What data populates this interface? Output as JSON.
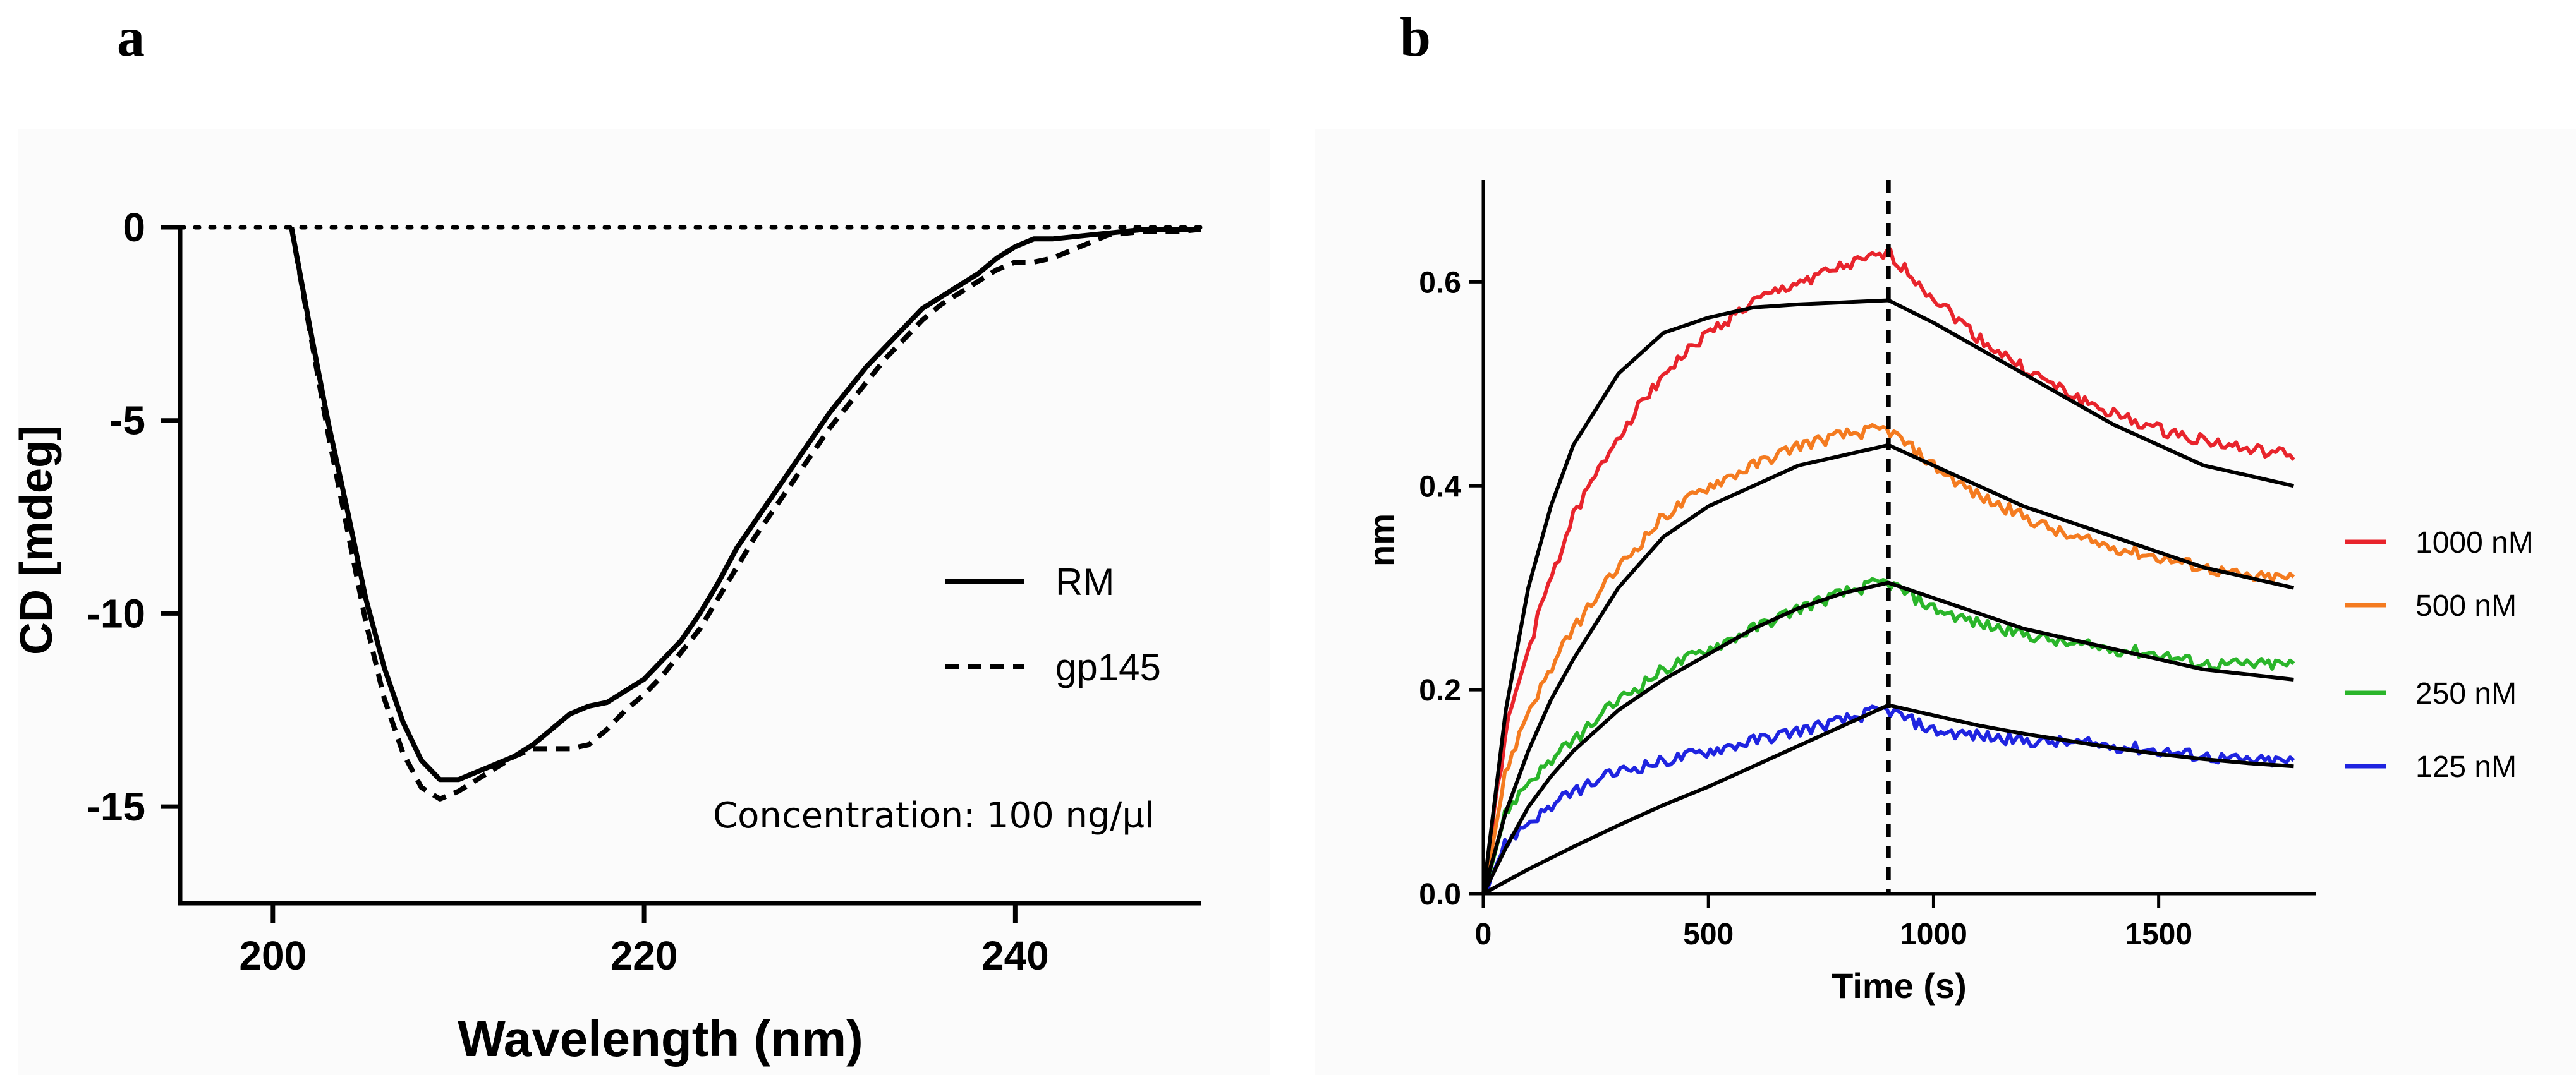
{
  "chart_data": [
    {
      "panel_label": "a",
      "type": "line",
      "xlabel": "Wavelength (nm)",
      "ylabel": "CD [mdeg]",
      "xlim": [
        195,
        250
      ],
      "ylim": [
        -17.5,
        0
      ],
      "xticks": [
        200,
        220,
        240
      ],
      "yticks": [
        0,
        -5,
        -10,
        -15
      ],
      "baseline": 0,
      "annotation": "Concentration: 100 ng/µl",
      "legend_position": "right",
      "series": [
        {
          "name": "RM",
          "style": "solid",
          "color": "#000000",
          "x": [
            201,
            202,
            203,
            204,
            205,
            206,
            207,
            208,
            209,
            210,
            211,
            212,
            213,
            214,
            215,
            216,
            217,
            218,
            219,
            220,
            221,
            222,
            223,
            224,
            225,
            226,
            227,
            228,
            229,
            230,
            231,
            232,
            233,
            234,
            235,
            236,
            237,
            238,
            239,
            240,
            241,
            242,
            243,
            244,
            245,
            246,
            247,
            248,
            249,
            250
          ],
          "y": [
            0,
            -2.6,
            -5.1,
            -7.3,
            -9.6,
            -11.4,
            -12.8,
            -13.8,
            -14.3,
            -14.3,
            -14.1,
            -13.9,
            -13.7,
            -13.4,
            -13.0,
            -12.6,
            -12.4,
            -12.3,
            -12.0,
            -11.7,
            -11.2,
            -10.7,
            -10.0,
            -9.2,
            -8.3,
            -7.6,
            -6.9,
            -6.2,
            -5.5,
            -4.8,
            -4.2,
            -3.6,
            -3.1,
            -2.6,
            -2.1,
            -1.8,
            -1.5,
            -1.2,
            -0.8,
            -0.5,
            -0.3,
            -0.3,
            -0.25,
            -0.2,
            -0.15,
            -0.1,
            -0.05,
            -0.05,
            -0.05,
            -0.05
          ]
        },
        {
          "name": "gp145",
          "style": "dashed",
          "color": "#000000",
          "x": [
            201,
            202,
            203,
            204,
            205,
            206,
            207,
            208,
            209,
            210,
            211,
            212,
            213,
            214,
            215,
            216,
            217,
            218,
            219,
            220,
            221,
            222,
            223,
            224,
            225,
            226,
            227,
            228,
            229,
            230,
            231,
            232,
            233,
            234,
            235,
            236,
            237,
            238,
            239,
            240,
            241,
            242,
            243,
            244,
            245,
            246,
            247,
            248,
            249,
            250
          ],
          "y": [
            0,
            -2.7,
            -5.4,
            -7.8,
            -10.2,
            -12.2,
            -13.6,
            -14.5,
            -14.8,
            -14.6,
            -14.3,
            -14.0,
            -13.7,
            -13.5,
            -13.5,
            -13.5,
            -13.4,
            -13.0,
            -12.5,
            -12.1,
            -11.6,
            -11.0,
            -10.4,
            -9.6,
            -8.8,
            -8.0,
            -7.3,
            -6.6,
            -5.9,
            -5.2,
            -4.6,
            -4.0,
            -3.4,
            -2.9,
            -2.4,
            -2.0,
            -1.7,
            -1.4,
            -1.1,
            -0.9,
            -0.9,
            -0.8,
            -0.6,
            -0.4,
            -0.2,
            -0.15,
            -0.1,
            -0.1,
            -0.1,
            -0.05
          ]
        }
      ]
    },
    {
      "panel_label": "b",
      "type": "line",
      "xlabel": "Time (s)",
      "ylabel": "nm",
      "xlim": [
        0,
        1850
      ],
      "ylim": [
        0,
        0.7
      ],
      "xticks": [
        0,
        500,
        1000,
        1500
      ],
      "yticks": [
        0.0,
        0.2,
        0.4,
        0.6
      ],
      "vline_x": 900,
      "legend_position": "right",
      "fit_color": "#000000",
      "series": [
        {
          "name": "1000 nM",
          "color": "#e8242c",
          "x": [
            0,
            50,
            100,
            150,
            200,
            300,
            400,
            500,
            600,
            700,
            800,
            880,
            900,
            1000,
            1100,
            1200,
            1300,
            1400,
            1500,
            1600,
            1700,
            1800
          ],
          "y": [
            0,
            0.16,
            0.24,
            0.31,
            0.37,
            0.45,
            0.51,
            0.55,
            0.58,
            0.6,
            0.615,
            0.625,
            0.628,
            0.585,
            0.545,
            0.515,
            0.49,
            0.47,
            0.455,
            0.445,
            0.435,
            0.43
          ],
          "fit_x": [
            0,
            50,
            100,
            150,
            200,
            300,
            400,
            500,
            600,
            700,
            800,
            900,
            1000,
            1100,
            1200,
            1300,
            1400,
            1500,
            1600,
            1700,
            1800
          ],
          "fit_y": [
            0,
            0.18,
            0.3,
            0.38,
            0.44,
            0.51,
            0.55,
            0.565,
            0.575,
            0.578,
            0.58,
            0.582,
            0.56,
            0.535,
            0.51,
            0.485,
            0.46,
            0.44,
            0.42,
            0.41,
            0.4
          ]
        },
        {
          "name": "500 nM",
          "color": "#f47b20",
          "x": [
            0,
            50,
            100,
            150,
            200,
            300,
            400,
            500,
            600,
            700,
            800,
            880,
            900,
            1000,
            1100,
            1200,
            1300,
            1400,
            1500,
            1600,
            1700,
            1800
          ],
          "y": [
            0,
            0.12,
            0.18,
            0.22,
            0.26,
            0.32,
            0.37,
            0.4,
            0.42,
            0.44,
            0.45,
            0.455,
            0.455,
            0.42,
            0.39,
            0.37,
            0.35,
            0.34,
            0.33,
            0.32,
            0.31,
            0.31
          ],
          "fit_x": [
            0,
            50,
            100,
            150,
            200,
            300,
            400,
            500,
            600,
            700,
            800,
            900,
            1000,
            1100,
            1200,
            1300,
            1400,
            1500,
            1600,
            1700,
            1800
          ],
          "fit_y": [
            0,
            0.08,
            0.14,
            0.19,
            0.23,
            0.3,
            0.35,
            0.38,
            0.4,
            0.42,
            0.43,
            0.44,
            0.42,
            0.4,
            0.38,
            0.365,
            0.35,
            0.335,
            0.32,
            0.31,
            0.3
          ]
        },
        {
          "name": "250 nM",
          "color": "#2ab52a",
          "x": [
            0,
            50,
            100,
            150,
            200,
            300,
            400,
            500,
            600,
            700,
            800,
            880,
            900,
            1000,
            1100,
            1200,
            1300,
            1400,
            1500,
            1600,
            1700,
            1800
          ],
          "y": [
            0,
            0.08,
            0.11,
            0.13,
            0.15,
            0.19,
            0.22,
            0.24,
            0.26,
            0.28,
            0.295,
            0.305,
            0.305,
            0.28,
            0.265,
            0.255,
            0.245,
            0.24,
            0.235,
            0.225,
            0.225,
            0.225
          ],
          "fit_x": [
            0,
            50,
            100,
            150,
            200,
            300,
            400,
            500,
            600,
            700,
            800,
            900,
            1000,
            1100,
            1200,
            1300,
            1400,
            1500,
            1600,
            1700,
            1800
          ],
          "fit_y": [
            0,
            0.045,
            0.085,
            0.115,
            0.14,
            0.18,
            0.21,
            0.235,
            0.26,
            0.28,
            0.295,
            0.305,
            0.29,
            0.275,
            0.26,
            0.25,
            0.24,
            0.23,
            0.22,
            0.215,
            0.21
          ]
        },
        {
          "name": "125 nM",
          "color": "#1f24e0",
          "x": [
            0,
            50,
            100,
            150,
            200,
            300,
            400,
            500,
            600,
            700,
            800,
            880,
            900,
            1000,
            1100,
            1200,
            1300,
            1400,
            1500,
            1600,
            1700,
            1800
          ],
          "y": [
            0,
            0.05,
            0.07,
            0.085,
            0.1,
            0.12,
            0.13,
            0.14,
            0.15,
            0.16,
            0.17,
            0.18,
            0.18,
            0.16,
            0.155,
            0.15,
            0.148,
            0.145,
            0.14,
            0.135,
            0.13,
            0.13
          ],
          "fit_x": [
            0,
            50,
            100,
            150,
            200,
            300,
            400,
            500,
            600,
            700,
            800,
            900,
            1000,
            1100,
            1200,
            1300,
            1400,
            1500,
            1600,
            1700,
            1800
          ],
          "fit_y": [
            0,
            0.012,
            0.024,
            0.035,
            0.046,
            0.067,
            0.087,
            0.105,
            0.125,
            0.145,
            0.165,
            0.185,
            0.175,
            0.165,
            0.157,
            0.15,
            0.143,
            0.137,
            0.132,
            0.128,
            0.125
          ]
        }
      ]
    }
  ]
}
